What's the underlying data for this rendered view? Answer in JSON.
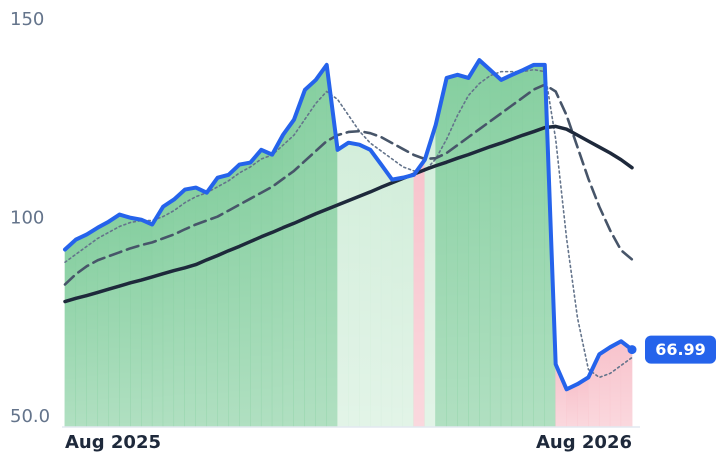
{
  "chart_data": {
    "type": "line",
    "categories": [
      "Aug 2025",
      null,
      null,
      null,
      null,
      null,
      null,
      null,
      null,
      null,
      null,
      null,
      null,
      null,
      null,
      null,
      null,
      null,
      null,
      null,
      null,
      null,
      null,
      null,
      null,
      null,
      null,
      null,
      null,
      null,
      null,
      null,
      null,
      null,
      null,
      null,
      null,
      null,
      null,
      null,
      null,
      null,
      null,
      null,
      null,
      null,
      null,
      null,
      null,
      null,
      null,
      null,
      "Aug 2026"
    ],
    "ylim": [
      47.5,
      150
    ],
    "yticks": [
      {
        "value": 50,
        "label": "50.0"
      },
      100,
      150
    ],
    "fill_colors": {
      "above": "#86cfa0",
      "between": "#d3eedb",
      "below": "#f8c3cc"
    },
    "series": [
      {
        "color": "#2563eb",
        "style": "solid",
        "width": 4,
        "values": [
          92.2,
          94.7,
          96,
          97.7,
          99.2,
          101,
          100.2,
          99.7,
          98.5,
          103,
          104.8,
          107.3,
          107.8,
          106.5,
          110.3,
          111,
          113.6,
          114.1,
          117.3,
          116.1,
          121.1,
          124.9,
          132.4,
          134.9,
          138.7,
          117.3,
          119.1,
          118.6,
          117.3,
          113.6,
          109.8,
          110.3,
          111,
          114.8,
          123.6,
          135.4,
          136.2,
          135.4,
          139.9,
          137.4,
          134.9,
          136.2,
          137.4,
          138.7,
          138.7,
          63.3,
          57,
          58.3,
          60,
          65.8,
          67.6,
          69.1,
          66.99
        ]
      },
      {
        "color": "#64748b",
        "style": "dotted",
        "width": 1.6,
        "values": [
          89,
          91,
          93,
          95,
          96.5,
          98,
          99,
          99.5,
          99.5,
          100.5,
          102,
          104,
          105.5,
          106.5,
          108,
          109.5,
          111.5,
          113,
          115,
          116,
          118.5,
          121,
          125,
          129,
          132,
          130,
          126,
          122,
          119,
          117,
          115,
          113,
          112,
          112,
          115,
          120,
          126,
          131,
          134,
          136,
          137,
          137,
          137,
          137.5,
          137,
          120,
          95,
          75,
          62,
          60,
          61,
          63,
          65
        ]
      },
      {
        "color": "#475569",
        "style": "dashed",
        "width": 2.6,
        "values": [
          83.4,
          86,
          88,
          89.5,
          90.5,
          91.5,
          92.5,
          93.3,
          94,
          95,
          96,
          97.3,
          98.5,
          99.5,
          100.5,
          102,
          103.5,
          105,
          106.5,
          108,
          110,
          112,
          114.5,
          117,
          119.5,
          121,
          121.8,
          122,
          121.5,
          120.5,
          119,
          117.5,
          116,
          115,
          115.2,
          116.5,
          118.5,
          120.5,
          122.5,
          124.5,
          126.5,
          128.5,
          130.5,
          132.5,
          133.7,
          132,
          126,
          118,
          110,
          103,
          97,
          92,
          89.7
        ]
      },
      {
        "color": "#1e293b",
        "style": "solid",
        "width": 3.5,
        "values": [
          79.1,
          79.9,
          80.6,
          81.4,
          82.2,
          83,
          83.8,
          84.5,
          85.3,
          86.1,
          86.9,
          87.6,
          88.4,
          89.6,
          90.7,
          91.9,
          93,
          94.2,
          95.4,
          96.5,
          97.7,
          98.8,
          100,
          101.2,
          102.3,
          103.4,
          104.5,
          105.6,
          106.7,
          107.9,
          109,
          110.1,
          111.2,
          112.3,
          113.3,
          114.2,
          115.2,
          116.1,
          117.1,
          118.1,
          119,
          120,
          121,
          121.9,
          122.9,
          123.2,
          122.5,
          121,
          119.5,
          118,
          116.5,
          114.8,
          112.8
        ]
      }
    ]
  }
}
